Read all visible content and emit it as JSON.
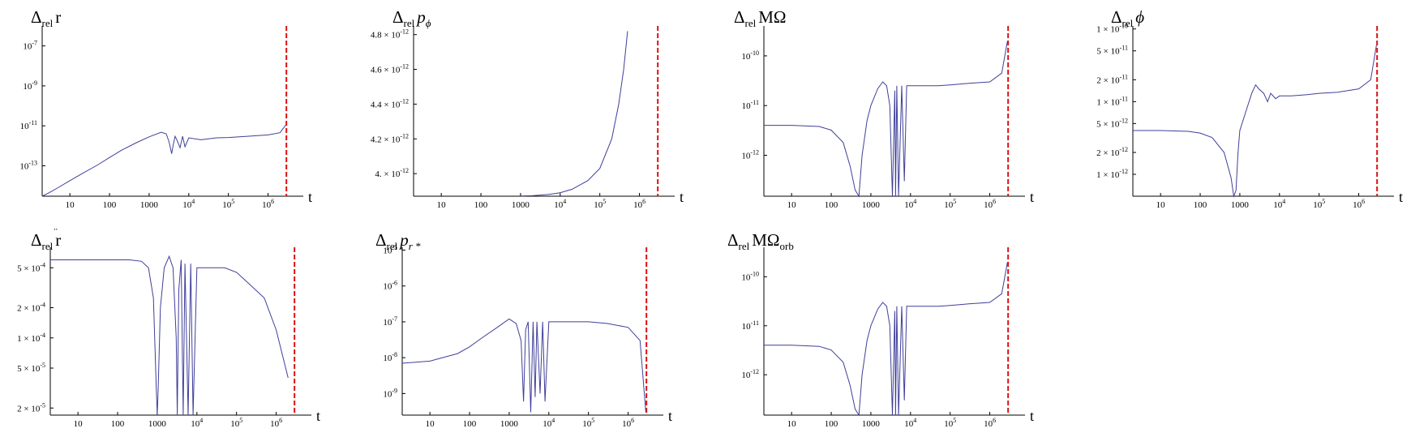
{
  "figure": {
    "background": "#ffffff"
  },
  "styles": {
    "series_color": "#3f3f9a",
    "marker_color": "#dd1111",
    "axis_color": "#000000"
  },
  "chart_data": [
    {
      "id": "p1",
      "type": "line",
      "title": "Δrel r",
      "title_main": "Δ",
      "title_sub": "rel",
      "title_rest": "r",
      "xlabel": "t",
      "xscale": "log",
      "yscale": "log",
      "xlim": [
        2,
        4000000
      ],
      "ylim": [
        3e-15,
        1e-06
      ],
      "x_ticks": [
        {
          "v": 10,
          "t": "10"
        },
        {
          "v": 100,
          "t": "100"
        },
        {
          "v": 1000,
          "t": "1000"
        },
        {
          "v": 10000,
          "t": "10",
          "e": "4"
        },
        {
          "v": 100000,
          "t": "10",
          "e": "5"
        },
        {
          "v": 1000000,
          "t": "10",
          "e": "6"
        }
      ],
      "y_ticks": [
        {
          "v": 1e-07,
          "t": "10",
          "e": "-7"
        },
        {
          "v": 1e-09,
          "t": "10",
          "e": "-9"
        },
        {
          "v": 1e-11,
          "t": "10",
          "e": "-11"
        },
        {
          "v": 1e-13,
          "t": "10",
          "e": "-13"
        }
      ],
      "marker_x": 2900000,
      "series": [
        {
          "x": [
            2,
            3,
            5,
            10,
            20,
            50,
            100,
            200,
            500,
            1000,
            2000,
            2700,
            3200,
            3700,
            4000,
            4500,
            5000,
            6000,
            7000,
            8000,
            10000,
            20000,
            50000,
            100000,
            300000,
            1000000,
            2000000,
            2800000
          ],
          "y": [
            3e-15,
            4.5e-15,
            8e-15,
            1.8e-14,
            4e-14,
            1.1e-13,
            2.6e-13,
            6e-13,
            1.5e-12,
            2.8e-12,
            4.8e-12,
            4e-12,
            1.5e-12,
            4e-13,
            1e-12,
            3e-12,
            2e-12,
            8e-13,
            3e-12,
            9e-13,
            2.5e-12,
            2e-12,
            2.5e-12,
            2.6e-12,
            3e-12,
            3.5e-12,
            4.5e-12,
            1.1e-11
          ]
        }
      ]
    },
    {
      "id": "p2",
      "type": "line",
      "title": "Δrel pϕ",
      "title_main": "Δ",
      "title_sub": "rel",
      "title_rest": "p",
      "title_rest_sub": "ϕ",
      "xlabel": "t",
      "xscale": "log",
      "yscale": "linear",
      "xlim": [
        2,
        4000000
      ],
      "ylim": [
        3.87e-12,
        4.85e-12
      ],
      "x_ticks": [
        {
          "v": 10,
          "t": "10"
        },
        {
          "v": 100,
          "t": "100"
        },
        {
          "v": 1000,
          "t": "1000"
        },
        {
          "v": 10000,
          "t": "10",
          "e": "4"
        },
        {
          "v": 100000,
          "t": "10",
          "e": "5"
        },
        {
          "v": 1000000,
          "t": "10",
          "e": "6"
        }
      ],
      "y_ticks": [
        {
          "v": 4.8e-12,
          "t": "4.8 × 10",
          "e": "-12"
        },
        {
          "v": 4.6e-12,
          "t": "4.6 × 10",
          "e": "-12"
        },
        {
          "v": 4.4e-12,
          "t": "4.4 × 10",
          "e": "-12"
        },
        {
          "v": 4.2e-12,
          "t": "4.2 × 10",
          "e": "-12"
        },
        {
          "v": 4e-12,
          "t": "4. × 10",
          "e": "-12"
        }
      ],
      "marker_x": 2900000,
      "series": [
        {
          "x": [
            1000,
            2000,
            5000,
            10000,
            20000,
            50000,
            100000,
            200000,
            300000,
            400000,
            500000
          ],
          "y": [
            3.871e-12,
            3.873e-12,
            3.88e-12,
            3.89e-12,
            3.91e-12,
            3.96e-12,
            4.03e-12,
            4.2e-12,
            4.4e-12,
            4.6e-12,
            4.82e-12
          ]
        }
      ]
    },
    {
      "id": "p3",
      "type": "line",
      "title": "Δrel MΩ",
      "title_main": "Δ",
      "title_sub": "rel",
      "title_rest": "MΩ",
      "xlabel": "t",
      "xscale": "log",
      "yscale": "log",
      "xlim": [
        2,
        4000000
      ],
      "ylim": [
        1.5e-13,
        4e-10
      ],
      "x_ticks": [
        {
          "v": 10,
          "t": "10"
        },
        {
          "v": 100,
          "t": "100"
        },
        {
          "v": 1000,
          "t": "1000"
        },
        {
          "v": 10000,
          "t": "10",
          "e": "4"
        },
        {
          "v": 100000,
          "t": "10",
          "e": "5"
        },
        {
          "v": 1000000,
          "t": "10",
          "e": "6"
        }
      ],
      "y_ticks": [
        {
          "v": 1e-10,
          "t": "10",
          "e": "-10"
        },
        {
          "v": 1e-11,
          "t": "10",
          "e": "-11"
        },
        {
          "v": 1e-12,
          "t": "10",
          "e": "-12"
        }
      ],
      "marker_x": 2900000,
      "series": [
        {
          "x": [
            2,
            10,
            50,
            100,
            200,
            300,
            400,
            500,
            600,
            800,
            1000,
            1500,
            2000,
            2500,
            3000,
            3500,
            4000,
            4200,
            4500,
            5000,
            6000,
            7000,
            8000,
            10000,
            20000,
            50000,
            100000,
            300000,
            1000000,
            2000000,
            2800000
          ],
          "y": [
            4e-12,
            4e-12,
            3.8e-12,
            3.2e-12,
            1.8e-12,
            6e-13,
            2e-13,
            1.5e-13,
            1e-12,
            5e-12,
            1e-11,
            2.2e-11,
            3e-11,
            2.5e-11,
            1e-11,
            1.5e-13,
            2e-11,
            1.5e-13,
            2.5e-11,
            1.5e-13,
            2.5e-11,
            3e-13,
            2.5e-11,
            2.5e-11,
            2.5e-11,
            2.5e-11,
            2.6e-11,
            2.8e-11,
            3e-11,
            4.5e-11,
            2e-10
          ]
        }
      ]
    },
    {
      "id": "p4",
      "type": "line",
      "title": "Δrel ϕ",
      "title_main": "Δ",
      "title_sub": "rel",
      "title_rest": "ϕ",
      "xlabel": "t",
      "xscale": "log",
      "yscale": "log",
      "xlim": [
        2,
        4000000
      ],
      "ylim": [
        5e-13,
        1.1e-10
      ],
      "x_ticks": [
        {
          "v": 10,
          "t": "10"
        },
        {
          "v": 100,
          "t": "100"
        },
        {
          "v": 1000,
          "t": "1000"
        },
        {
          "v": 10000,
          "t": "10",
          "e": "4"
        },
        {
          "v": 100000,
          "t": "10",
          "e": "5"
        },
        {
          "v": 1000000,
          "t": "10",
          "e": "6"
        }
      ],
      "y_ticks": [
        {
          "v": 1e-10,
          "t": "1 × 10",
          "e": "-10"
        },
        {
          "v": 5e-11,
          "t": "5 × 10",
          "e": "-11"
        },
        {
          "v": 2e-11,
          "t": "2 × 10",
          "e": "-11"
        },
        {
          "v": 1e-11,
          "t": "1 × 10",
          "e": "-11"
        },
        {
          "v": 5e-12,
          "t": "5 × 10",
          "e": "-12"
        },
        {
          "v": 2e-12,
          "t": "2 × 10",
          "e": "-12"
        },
        {
          "v": 1e-12,
          "t": "1 × 10",
          "e": "-12"
        }
      ],
      "marker_x": 2900000,
      "series": [
        {
          "x": [
            2,
            10,
            50,
            100,
            200,
            400,
            600,
            700,
            800,
            900,
            1000,
            1500,
            2000,
            2500,
            3000,
            4000,
            5000,
            6000,
            8000,
            10000,
            20000,
            50000,
            100000,
            300000,
            1000000,
            2000000,
            2800000
          ],
          "y": [
            4e-12,
            4e-12,
            3.9e-12,
            3.7e-12,
            3.2e-12,
            2e-12,
            9e-13,
            5e-13,
            6e-13,
            2e-12,
            4e-12,
            8e-12,
            1.3e-11,
            1.7e-11,
            1.5e-11,
            1.3e-11,
            1e-11,
            1.3e-11,
            1.1e-11,
            1.2e-11,
            1.2e-11,
            1.25e-11,
            1.3e-11,
            1.35e-11,
            1.5e-11,
            2e-11,
            6e-11
          ]
        }
      ]
    },
    {
      "id": "p5",
      "type": "line",
      "title": "Δrel r̈",
      "title_main": "Δ",
      "title_sub": "rel",
      "title_rest": "r",
      "xlabel": "t",
      "xscale": "log",
      "yscale": "log",
      "xlim": [
        2,
        4000000
      ],
      "ylim": [
        1.7e-05,
        0.0008
      ],
      "x_ticks": [
        {
          "v": 10,
          "t": "10"
        },
        {
          "v": 100,
          "t": "100"
        },
        {
          "v": 1000,
          "t": "1000"
        },
        {
          "v": 10000,
          "t": "10",
          "e": "4"
        },
        {
          "v": 100000,
          "t": "10",
          "e": "5"
        },
        {
          "v": 1000000,
          "t": "10",
          "e": "6"
        }
      ],
      "y_ticks": [
        {
          "v": 0.0005,
          "t": "5 × 10",
          "e": "-4"
        },
        {
          "v": 0.0002,
          "t": "2 × 10",
          "e": "-4"
        },
        {
          "v": 0.0001,
          "t": "1 × 10",
          "e": "-4"
        },
        {
          "v": 5e-05,
          "t": "5 × 10",
          "e": "-5"
        },
        {
          "v": 2e-05,
          "t": "2 × 10",
          "e": "-5"
        }
      ],
      "marker_x": 2900000,
      "series": [
        {
          "x": [
            2,
            10,
            100,
            200,
            400,
            600,
            800,
            950,
            1000,
            1050,
            1200,
            1500,
            2000,
            2500,
            3000,
            3200,
            3500,
            4000,
            4500,
            5000,
            6000,
            7000,
            8000,
            10000,
            20000,
            50000,
            100000,
            200000,
            500000,
            1000000,
            2000000
          ],
          "y": [
            0.0006,
            0.0006,
            0.0006,
            0.0006,
            0.00058,
            0.0005,
            0.00025,
            3e-05,
            1.7e-05,
            3e-05,
            0.0002,
            0.0005,
            0.00065,
            0.0005,
            0.0001,
            1.7e-05,
            0.0003,
            0.0006,
            1.7e-05,
            0.00055,
            1.7e-05,
            0.00055,
            1.7e-05,
            0.0005,
            0.0005,
            0.0005,
            0.00045,
            0.00035,
            0.00025,
            0.00012,
            4e-05
          ]
        }
      ]
    },
    {
      "id": "p6",
      "type": "line",
      "title": "Δrel pr*",
      "title_main": "Δ",
      "title_sub": "rel",
      "title_rest": "p",
      "title_rest_sub": "r *",
      "xlabel": "t",
      "xscale": "log",
      "yscale": "log",
      "xlim": [
        2,
        4000000
      ],
      "ylim": [
        2.5e-10,
        1.2e-05
      ],
      "x_ticks": [
        {
          "v": 10,
          "t": "10"
        },
        {
          "v": 100,
          "t": "100"
        },
        {
          "v": 1000,
          "t": "1000"
        },
        {
          "v": 10000,
          "t": "10",
          "e": "4"
        },
        {
          "v": 100000,
          "t": "10",
          "e": "5"
        },
        {
          "v": 1000000,
          "t": "10",
          "e": "6"
        }
      ],
      "y_ticks": [
        {
          "v": 1e-05,
          "t": "10",
          "e": "-5"
        },
        {
          "v": 1e-06,
          "t": "10",
          "e": "-6"
        },
        {
          "v": 1e-07,
          "t": "10",
          "e": "-7"
        },
        {
          "v": 1e-08,
          "t": "10",
          "e": "-8"
        },
        {
          "v": 1e-09,
          "t": "10",
          "e": "-9"
        }
      ],
      "marker_x": 2900000,
      "series": [
        {
          "x": [
            2,
            10,
            50,
            100,
            200,
            500,
            1000,
            1500,
            2000,
            2300,
            2600,
            3000,
            3500,
            4000,
            4500,
            5000,
            6000,
            7000,
            8000,
            10000,
            20000,
            50000,
            100000,
            300000,
            1000000,
            2000000,
            2800000
          ],
          "y": [
            7e-09,
            8e-09,
            1.3e-08,
            2e-08,
            3.5e-08,
            7e-08,
            1.2e-07,
            9e-08,
            3e-08,
            6e-10,
            6e-08,
            1e-07,
            3e-10,
            1e-07,
            8e-10,
            1e-07,
            1e-09,
            1e-07,
            6e-10,
            1e-07,
            1e-07,
            1e-07,
            1e-07,
            9e-08,
            7e-08,
            3e-08,
            3e-10
          ]
        }
      ]
    },
    {
      "id": "p7",
      "type": "line",
      "title": "Δrel MΩorb",
      "title_main": "Δ",
      "title_sub": "rel",
      "title_rest": "MΩ",
      "title_rest_sub": "orb",
      "xlabel": "t",
      "xscale": "log",
      "yscale": "log",
      "xlim": [
        2,
        4000000
      ],
      "ylim": [
        1.5e-13,
        4e-10
      ],
      "x_ticks": [
        {
          "v": 10,
          "t": "10"
        },
        {
          "v": 100,
          "t": "100"
        },
        {
          "v": 1000,
          "t": "1000"
        },
        {
          "v": 10000,
          "t": "10",
          "e": "4"
        },
        {
          "v": 100000,
          "t": "10",
          "e": "5"
        },
        {
          "v": 1000000,
          "t": "10",
          "e": "6"
        }
      ],
      "y_ticks": [
        {
          "v": 1e-10,
          "t": "10",
          "e": "-10"
        },
        {
          "v": 1e-11,
          "t": "10",
          "e": "-11"
        },
        {
          "v": 1e-12,
          "t": "10",
          "e": "-12"
        }
      ],
      "marker_x": 2900000,
      "series": [
        {
          "x": [
            2,
            10,
            50,
            100,
            200,
            300,
            400,
            500,
            600,
            800,
            1000,
            1500,
            2000,
            2500,
            3000,
            3500,
            4000,
            4200,
            4500,
            5000,
            6000,
            7000,
            8000,
            10000,
            20000,
            50000,
            100000,
            300000,
            1000000,
            2000000,
            2800000
          ],
          "y": [
            4e-12,
            4e-12,
            3.8e-12,
            3.2e-12,
            1.8e-12,
            6e-13,
            2e-13,
            1.5e-13,
            1e-12,
            5e-12,
            1e-11,
            2.2e-11,
            3e-11,
            2.5e-11,
            1e-11,
            1.5e-13,
            2e-11,
            1.5e-13,
            2.5e-11,
            1.5e-13,
            2.5e-11,
            3e-13,
            2.5e-11,
            2.5e-11,
            2.5e-11,
            2.5e-11,
            2.6e-11,
            2.8e-11,
            3e-11,
            4.5e-11,
            2e-10
          ]
        }
      ]
    }
  ]
}
